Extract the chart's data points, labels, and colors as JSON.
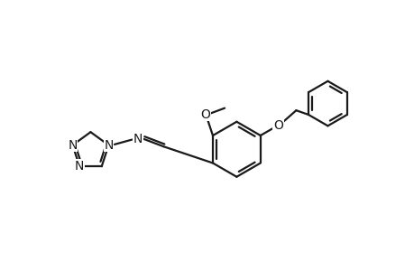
{
  "bg_color": "#ffffff",
  "line_color": "#1a1a1a",
  "text_color": "#1a1a1a",
  "line_width": 1.6,
  "font_size": 10,
  "figsize": [
    4.6,
    3.0
  ],
  "dpi": 100,
  "xlim": [
    -1,
    11
  ],
  "ylim": [
    -0.5,
    7
  ]
}
